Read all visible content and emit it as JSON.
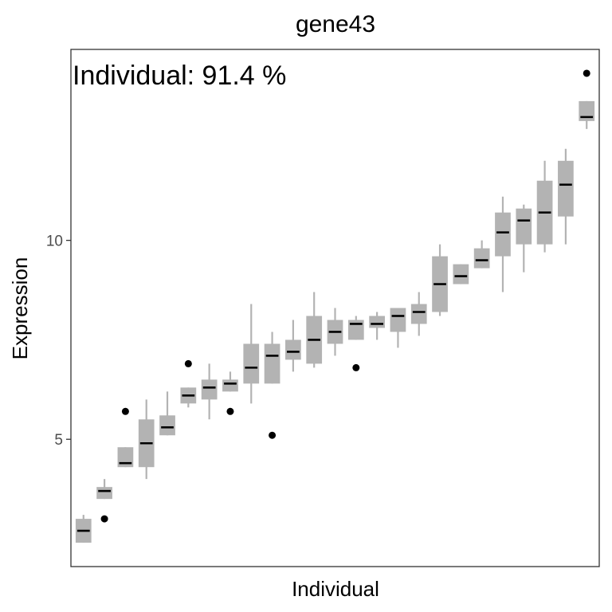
{
  "chart_data": {
    "type": "boxplot",
    "title": "gene43",
    "annotation": "Individual: 91.4 %",
    "xlabel": "Individual",
    "ylabel": "Expression",
    "ylim": [
      1.8,
      14.8
    ],
    "yticks": [
      5,
      10
    ],
    "x_ticks_shown": false,
    "grid": false,
    "colors": {
      "box": "#b3b3b3",
      "median": "#000000",
      "outlier": "#000000",
      "panel_border": "#333333"
    },
    "boxes": [
      {
        "q1": 2.4,
        "median": 2.7,
        "q3": 3.0,
        "whisker_low": 2.4,
        "whisker_high": 3.1,
        "outliers": []
      },
      {
        "q1": 3.5,
        "median": 3.7,
        "q3": 3.8,
        "whisker_low": 3.5,
        "whisker_high": 4.0,
        "outliers": [
          3.0
        ]
      },
      {
        "q1": 4.3,
        "median": 4.4,
        "q3": 4.8,
        "whisker_low": 4.3,
        "whisker_high": 4.8,
        "outliers": [
          5.7
        ]
      },
      {
        "q1": 4.3,
        "median": 4.9,
        "q3": 5.5,
        "whisker_low": 4.0,
        "whisker_high": 6.0,
        "outliers": []
      },
      {
        "q1": 5.1,
        "median": 5.3,
        "q3": 5.6,
        "whisker_low": 5.1,
        "whisker_high": 6.2,
        "outliers": []
      },
      {
        "q1": 5.9,
        "median": 6.1,
        "q3": 6.3,
        "whisker_low": 5.8,
        "whisker_high": 6.3,
        "outliers": [
          6.9
        ]
      },
      {
        "q1": 6.0,
        "median": 6.3,
        "q3": 6.5,
        "whisker_low": 5.5,
        "whisker_high": 6.9,
        "outliers": []
      },
      {
        "q1": 6.2,
        "median": 6.4,
        "q3": 6.5,
        "whisker_low": 6.2,
        "whisker_high": 6.7,
        "outliers": [
          5.7
        ]
      },
      {
        "q1": 6.4,
        "median": 6.8,
        "q3": 7.4,
        "whisker_low": 5.9,
        "whisker_high": 8.4,
        "outliers": []
      },
      {
        "q1": 6.4,
        "median": 7.1,
        "q3": 7.4,
        "whisker_low": 6.4,
        "whisker_high": 7.7,
        "outliers": [
          5.1
        ]
      },
      {
        "q1": 7.0,
        "median": 7.2,
        "q3": 7.5,
        "whisker_low": 6.7,
        "whisker_high": 8.0,
        "outliers": []
      },
      {
        "q1": 6.9,
        "median": 7.5,
        "q3": 8.1,
        "whisker_low": 6.8,
        "whisker_high": 8.7,
        "outliers": []
      },
      {
        "q1": 7.4,
        "median": 7.7,
        "q3": 8.0,
        "whisker_low": 7.1,
        "whisker_high": 8.3,
        "outliers": []
      },
      {
        "q1": 7.5,
        "median": 7.9,
        "q3": 8.0,
        "whisker_low": 7.5,
        "whisker_high": 8.1,
        "outliers": [
          6.8
        ]
      },
      {
        "q1": 7.8,
        "median": 7.9,
        "q3": 8.1,
        "whisker_low": 7.5,
        "whisker_high": 8.2,
        "outliers": []
      },
      {
        "q1": 7.7,
        "median": 8.1,
        "q3": 8.3,
        "whisker_low": 7.3,
        "whisker_high": 8.3,
        "outliers": []
      },
      {
        "q1": 7.9,
        "median": 8.2,
        "q3": 8.4,
        "whisker_low": 7.6,
        "whisker_high": 8.7,
        "outliers": []
      },
      {
        "q1": 8.2,
        "median": 8.9,
        "q3": 9.6,
        "whisker_low": 8.1,
        "whisker_high": 9.9,
        "outliers": []
      },
      {
        "q1": 8.9,
        "median": 9.1,
        "q3": 9.4,
        "whisker_low": 8.9,
        "whisker_high": 9.4,
        "outliers": []
      },
      {
        "q1": 9.3,
        "median": 9.5,
        "q3": 9.8,
        "whisker_low": 9.3,
        "whisker_high": 10.0,
        "outliers": []
      },
      {
        "q1": 9.6,
        "median": 10.2,
        "q3": 10.7,
        "whisker_low": 8.7,
        "whisker_high": 11.1,
        "outliers": []
      },
      {
        "q1": 9.9,
        "median": 10.5,
        "q3": 10.8,
        "whisker_low": 9.2,
        "whisker_high": 10.9,
        "outliers": []
      },
      {
        "q1": 9.9,
        "median": 10.7,
        "q3": 11.5,
        "whisker_low": 9.7,
        "whisker_high": 12.0,
        "outliers": []
      },
      {
        "q1": 10.6,
        "median": 11.4,
        "q3": 12.0,
        "whisker_low": 9.9,
        "whisker_high": 12.3,
        "outliers": []
      },
      {
        "q1": 13.0,
        "median": 13.1,
        "q3": 13.5,
        "whisker_low": 12.8,
        "whisker_high": 13.5,
        "outliers": [
          14.2
        ]
      }
    ]
  }
}
